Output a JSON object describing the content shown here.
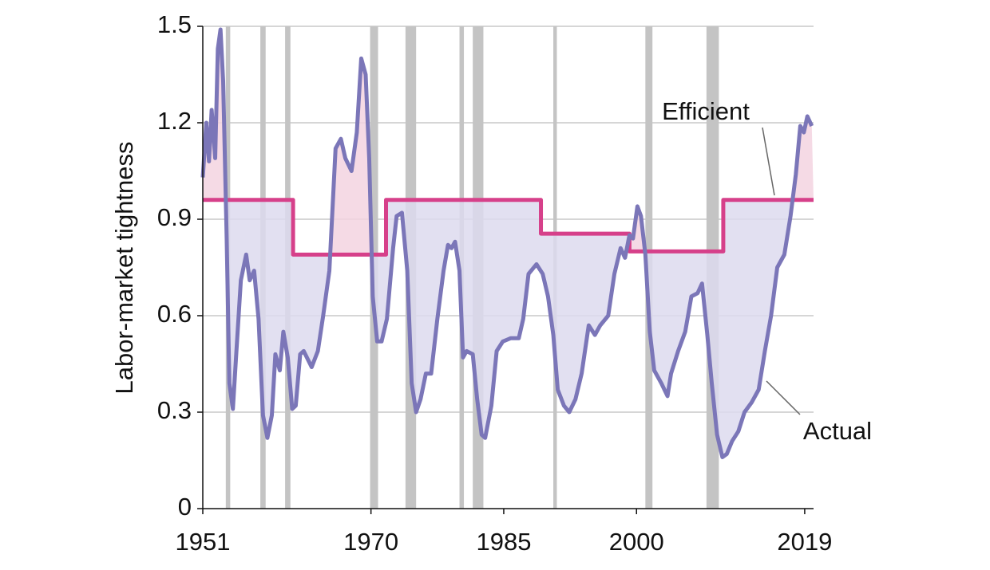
{
  "chart_data": {
    "type": "line",
    "ylabel": "Labor-market tightness",
    "xlim": [
      1951,
      2020
    ],
    "xticks": [
      1951,
      1970,
      1985,
      2000,
      2019
    ],
    "ylim": [
      0,
      1.5
    ],
    "yticks": [
      0,
      0.3,
      0.6,
      0.9,
      1.2,
      1.5
    ],
    "grid": true,
    "recession_color": "#c4c4c4",
    "recessions": [
      [
        1953.6,
        1954.1
      ],
      [
        1957.5,
        1958.1
      ],
      [
        1960.3,
        1960.9
      ],
      [
        1969.9,
        1970.8
      ],
      [
        1973.9,
        1975.1
      ],
      [
        1980.0,
        1980.5
      ],
      [
        1981.5,
        1982.7
      ],
      [
        1990.6,
        1991.0
      ],
      [
        2001.0,
        2001.8
      ],
      [
        2007.9,
        2009.3
      ]
    ],
    "above_fill_color": "#f3d4e0",
    "below_fill_color": "#dddaef",
    "series": [
      {
        "name": "Efficient",
        "color": "#d6408a",
        "x": [
          1951,
          1961.2,
          1961.2,
          1971.7,
          1971.7,
          1989.2,
          1989.2,
          1999.2,
          1999.2,
          2009.8,
          2009.8,
          2020
        ],
        "values": [
          0.96,
          0.96,
          0.79,
          0.79,
          0.96,
          0.96,
          0.855,
          0.855,
          0.8,
          0.8,
          0.96,
          0.96
        ]
      },
      {
        "name": "Actual",
        "color": "#7b76b8",
        "x": [
          1951.0,
          1951.4,
          1951.7,
          1952.0,
          1952.4,
          1952.7,
          1953.0,
          1953.3,
          1953.7,
          1954.0,
          1954.4,
          1954.8,
          1955.3,
          1955.9,
          1956.3,
          1956.8,
          1957.3,
          1957.8,
          1958.3,
          1958.8,
          1959.2,
          1959.7,
          1960.1,
          1960.6,
          1961.1,
          1961.5,
          1962.0,
          1962.4,
          1963.3,
          1964.0,
          1964.6,
          1965.3,
          1966.0,
          1966.6,
          1967.1,
          1967.8,
          1968.4,
          1968.9,
          1969.4,
          1969.8,
          1970.2,
          1970.7,
          1971.2,
          1971.8,
          1972.5,
          1972.9,
          1973.5,
          1974.1,
          1974.6,
          1975.1,
          1975.6,
          1976.2,
          1976.8,
          1977.5,
          1978.2,
          1978.7,
          1979.1,
          1979.5,
          1980.0,
          1980.4,
          1980.8,
          1981.5,
          1982.0,
          1982.5,
          1982.9,
          1983.6,
          1984.2,
          1984.9,
          1985.8,
          1986.7,
          1987.2,
          1987.8,
          1988.7,
          1989.4,
          1990.0,
          1990.6,
          1991.1,
          1991.8,
          1992.4,
          1993.1,
          1993.8,
          1994.6,
          1995.3,
          1995.9,
          1996.8,
          1997.5,
          1998.2,
          1998.7,
          1999.2,
          1999.6,
          2000.1,
          2000.5,
          2001.0,
          2001.5,
          2002.0,
          2002.8,
          2003.5,
          2003.9,
          2004.7,
          2005.5,
          2006.2,
          2006.9,
          2007.4,
          2008.0,
          2008.5,
          2009.1,
          2009.7,
          2010.2,
          2010.8,
          2011.5,
          2012.2,
          2013.0,
          2013.8,
          2014.5,
          2015.2,
          2015.9,
          2016.7,
          2017.4,
          2018.0,
          2018.5,
          2018.9,
          2019.3,
          2019.8
        ],
        "values": [
          1.03,
          1.2,
          1.08,
          1.24,
          1.09,
          1.43,
          1.49,
          1.33,
          0.84,
          0.39,
          0.31,
          0.49,
          0.71,
          0.79,
          0.71,
          0.74,
          0.59,
          0.29,
          0.22,
          0.29,
          0.48,
          0.43,
          0.55,
          0.47,
          0.31,
          0.32,
          0.48,
          0.49,
          0.44,
          0.49,
          0.6,
          0.74,
          1.12,
          1.15,
          1.09,
          1.05,
          1.17,
          1.4,
          1.35,
          1.09,
          0.66,
          0.52,
          0.52,
          0.59,
          0.81,
          0.91,
          0.92,
          0.74,
          0.39,
          0.3,
          0.34,
          0.42,
          0.42,
          0.59,
          0.74,
          0.82,
          0.81,
          0.83,
          0.74,
          0.47,
          0.49,
          0.48,
          0.34,
          0.23,
          0.22,
          0.32,
          0.49,
          0.52,
          0.53,
          0.53,
          0.59,
          0.73,
          0.76,
          0.73,
          0.66,
          0.54,
          0.37,
          0.32,
          0.3,
          0.34,
          0.42,
          0.57,
          0.54,
          0.57,
          0.6,
          0.73,
          0.81,
          0.78,
          0.85,
          0.84,
          0.94,
          0.91,
          0.79,
          0.55,
          0.43,
          0.39,
          0.35,
          0.42,
          0.49,
          0.55,
          0.66,
          0.67,
          0.7,
          0.54,
          0.39,
          0.23,
          0.16,
          0.17,
          0.21,
          0.24,
          0.3,
          0.33,
          0.37,
          0.49,
          0.6,
          0.75,
          0.79,
          0.91,
          1.04,
          1.19,
          1.17,
          1.22,
          1.19
        ]
      }
    ]
  }
}
